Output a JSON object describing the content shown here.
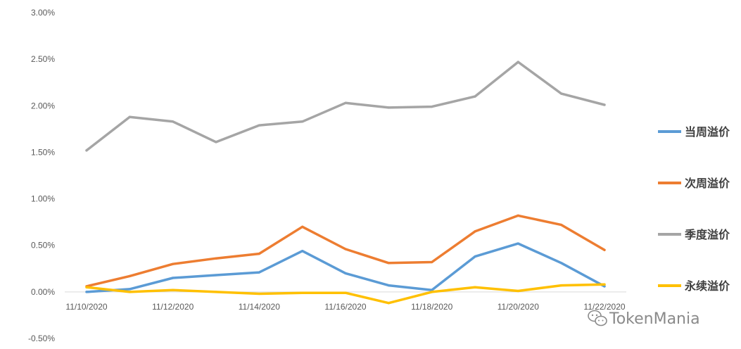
{
  "chart_data": {
    "type": "line",
    "title": "",
    "xlabel": "",
    "ylabel": "",
    "x": [
      "11/10/2020",
      "11/11/2020",
      "11/12/2020",
      "11/13/2020",
      "11/14/2020",
      "11/15/2020",
      "11/16/2020",
      "11/17/2020",
      "11/18/2020",
      "11/19/2020",
      "11/20/2020",
      "11/21/2020",
      "11/22/2020"
    ],
    "xtick_labels": [
      "11/10/2020",
      "11/12/2020",
      "11/14/2020",
      "11/16/2020",
      "11/18/2020",
      "11/20/2020",
      "11/22/2020"
    ],
    "ylim": [
      -0.005,
      0.03
    ],
    "yticks": [
      -0.005,
      0,
      0.005,
      0.01,
      0.015,
      0.02,
      0.025,
      0.03
    ],
    "ytick_labels": [
      "-0.50%",
      "0.00%",
      "0.50%",
      "1.00%",
      "1.50%",
      "2.00%",
      "2.50%",
      "3.00%"
    ],
    "grid": false,
    "legend_position": "right",
    "series": [
      {
        "name": "当周溢价",
        "color": "#5b9bd5",
        "values": [
          0.0,
          0.0003,
          0.0015,
          0.0018,
          0.0021,
          0.0044,
          0.002,
          0.0007,
          0.0002,
          0.0038,
          0.0052,
          0.0031,
          0.0006
        ]
      },
      {
        "name": "次周溢价",
        "color": "#ed7d31",
        "values": [
          0.0006,
          0.0017,
          0.003,
          0.0036,
          0.0041,
          0.007,
          0.0046,
          0.0031,
          0.0032,
          0.0065,
          0.0082,
          0.0072,
          0.0045
        ]
      },
      {
        "name": "季度溢价",
        "color": "#a5a5a5",
        "values": [
          0.0152,
          0.0188,
          0.0183,
          0.0161,
          0.0179,
          0.0183,
          0.0203,
          0.0198,
          0.0199,
          0.021,
          0.0247,
          0.0213,
          0.0201
        ]
      },
      {
        "name": "永续溢价",
        "color": "#ffc000",
        "values": [
          0.0005,
          0.0,
          0.0002,
          0.0,
          -0.0002,
          -0.0001,
          -0.0001,
          -0.0012,
          0.0,
          0.0005,
          0.0001,
          0.0007,
          0.0008
        ]
      }
    ]
  },
  "watermark": {
    "text": "TokenMania",
    "icon": "wechat-icon"
  }
}
